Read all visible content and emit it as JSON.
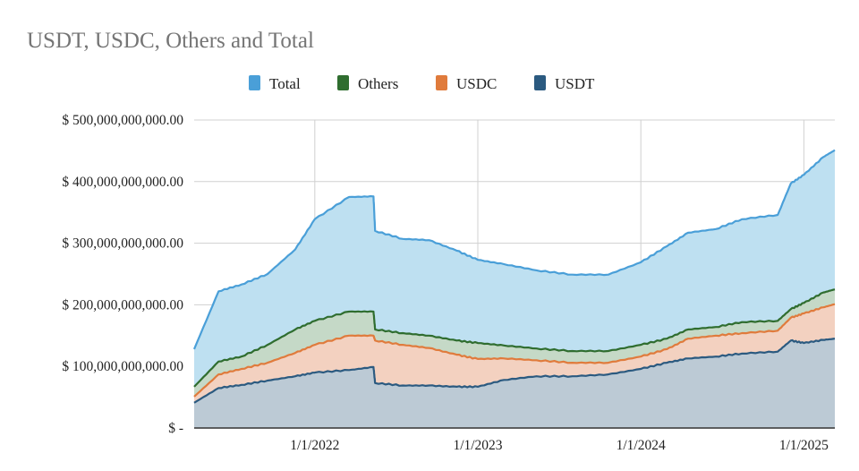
{
  "chart_data": {
    "type": "area",
    "title": "USDT, USDC, Others and Total",
    "xlabel": "",
    "ylabel": "",
    "legend_position": "top",
    "grid": true,
    "ylim": [
      0,
      500000000000
    ],
    "xlim": [
      2021.26,
      2025.19
    ],
    "y_unit_note": "values in billions of US dollars (plotted heights)",
    "y_ticks": [
      {
        "value": 0,
        "label": "$ -"
      },
      {
        "value": 100,
        "label": "$ 100,000,000,000.00"
      },
      {
        "value": 200,
        "label": "$ 200,000,000,000.00"
      },
      {
        "value": 300,
        "label": "$ 300,000,000,000.00"
      },
      {
        "value": 400,
        "label": "$ 400,000,000,000.00"
      },
      {
        "value": 500,
        "label": "$ 500,000,000,000.00"
      }
    ],
    "x_ticks": [
      {
        "value": 2022,
        "label": "1/1/2022"
      },
      {
        "value": 2023,
        "label": "1/1/2023"
      },
      {
        "value": 2024,
        "label": "1/1/2024"
      },
      {
        "value": 2025,
        "label": "1/1/2025"
      }
    ],
    "x": [
      2021.26,
      2021.41,
      2021.55,
      2021.71,
      2021.88,
      2022.0,
      2022.21,
      2022.36,
      2022.37,
      2022.54,
      2022.7,
      2022.87,
      2023.0,
      2023.16,
      2023.36,
      2023.58,
      2023.8,
      2024.0,
      2024.16,
      2024.29,
      2024.46,
      2024.62,
      2024.84,
      2024.92,
      2025.0,
      2025.12,
      2025.19
    ],
    "series": [
      {
        "name": "Total",
        "line": "#4a9fd8",
        "fill": "#bee0f1",
        "values": [
          128,
          222,
          233,
          250,
          290,
          339,
          375,
          376,
          320,
          307,
          305,
          288,
          273,
          266,
          256,
          249,
          249,
          269,
          295,
          317,
          323,
          339,
          346,
          397,
          411,
          440,
          451
        ]
      },
      {
        "name": "Others",
        "line": "#2f6d2f",
        "fill": "#c5d9c7",
        "values": [
          67,
          108,
          116,
          135,
          160,
          174,
          189,
          189,
          160,
          154,
          150,
          142,
          138,
          134,
          129,
          125,
          125,
          135,
          145,
          160,
          164,
          172,
          174,
          193,
          203,
          220,
          225
        ]
      },
      {
        "name": "USDC",
        "line": "#e07b3c",
        "fill": "#f3d1c0",
        "values": [
          51,
          87,
          96,
          106,
          122,
          135,
          150,
          150,
          142,
          135,
          130,
          119,
          112,
          113,
          110,
          106,
          106,
          116,
          128,
          145,
          150,
          154,
          158,
          179,
          186,
          196,
          201
        ]
      },
      {
        "name": "USDT",
        "line": "#2b5a80",
        "fill": "#bccad5",
        "values": [
          41,
          65,
          70,
          77,
          84,
          90,
          94,
          99,
          73,
          69,
          69,
          67,
          67,
          78,
          84,
          84,
          87,
          96,
          106,
          113,
          116,
          121,
          124,
          142,
          138,
          143,
          145
        ]
      }
    ]
  }
}
